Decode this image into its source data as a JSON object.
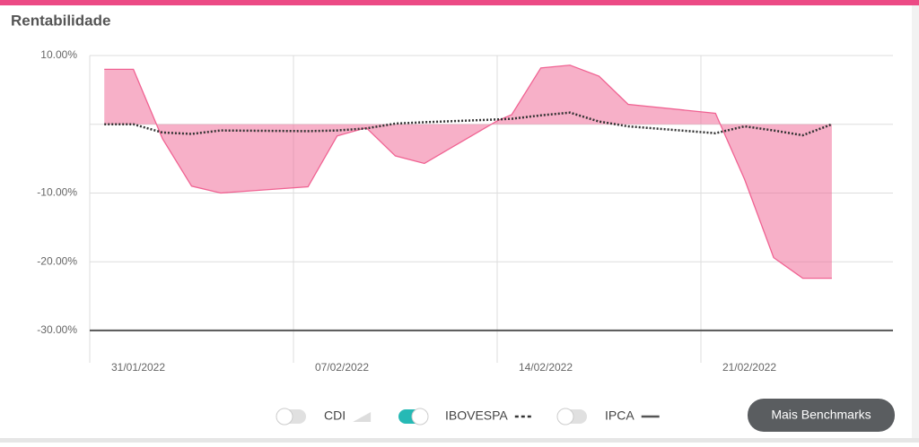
{
  "chart_data": {
    "type": "area-line",
    "title": "Rentabilidade",
    "x": [
      0.5,
      1.5,
      2.5,
      3.5,
      4.5,
      7.5,
      8.5,
      9.5,
      10.5,
      11.5,
      14,
      14.5,
      15.5,
      16.5,
      17.5,
      18.5,
      21.5,
      22.5,
      23.5,
      24.5,
      25.5
    ],
    "area": {
      "color": "#f06292",
      "values": [
        8.0,
        8.0,
        -2.1,
        -9.0,
        -10.0,
        -9.1,
        -1.7,
        -0.5,
        -4.6,
        -5.7,
        0.5,
        1.4,
        8.2,
        8.6,
        7.0,
        2.9,
        1.6,
        -8.0,
        -19.4,
        -22.4,
        -22.4
      ]
    },
    "series": [
      {
        "name": "IBOVESPA",
        "color": "#333333",
        "values": [
          0,
          0,
          -1.2,
          -1.4,
          -0.9,
          -1.0,
          -0.9,
          -0.6,
          0.1,
          0.3,
          0.7,
          0.8,
          1.3,
          1.7,
          0.4,
          -0.3,
          -1.3,
          -0.3,
          -0.9,
          -1.6,
          0
        ]
      }
    ],
    "xlim": [
      0,
      27.6
    ],
    "xticks": [
      {
        "value": 0,
        "label": "31/01/2022"
      },
      {
        "value": 7,
        "label": "07/02/2022"
      },
      {
        "value": 14,
        "label": "14/02/2022"
      },
      {
        "value": 21,
        "label": "21/02/2022"
      }
    ],
    "ylim": [
      -34.7,
      10
    ],
    "yticks": [
      {
        "value": 10,
        "label": "10.00%"
      },
      {
        "value": -10,
        "label": "-10.00%"
      },
      {
        "value": -20,
        "label": "-20.00%"
      },
      {
        "value": -30,
        "label": "-30.00%"
      }
    ],
    "grid": true
  },
  "benchmarks": [
    {
      "name": "CDI",
      "enabled": false
    },
    {
      "name": "IBOVESPA",
      "enabled": true
    },
    {
      "name": "IPCA",
      "enabled": false
    }
  ],
  "button": "Mais Benchmarks"
}
